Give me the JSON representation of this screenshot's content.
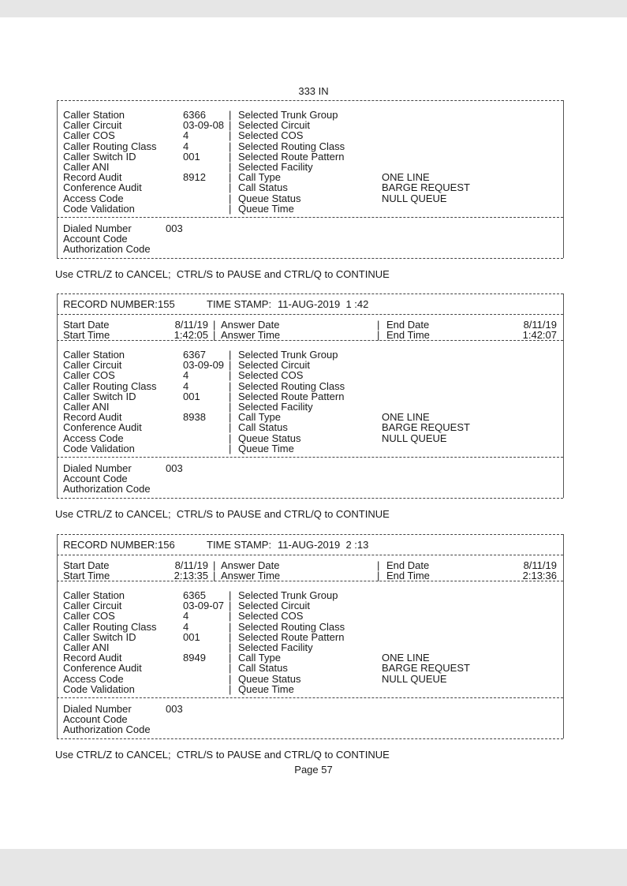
{
  "page_header": "333 IN",
  "page_footer": "Page 57",
  "records": [
    {
      "partial": true,
      "left": [
        {
          "label": "Caller Station",
          "value": "6366"
        },
        {
          "label": "Caller Circuit",
          "value": "03-09-08"
        },
        {
          "label": "Caller COS",
          "value": "4"
        },
        {
          "label": "Caller Routing Class",
          "value": "4"
        },
        {
          "label": "Caller Switch ID",
          "value": "001"
        },
        {
          "label": "Caller ANI",
          "value": ""
        },
        {
          "label": "Record Audit",
          "value": "8912"
        },
        {
          "label": "Conference Audit",
          "value": ""
        },
        {
          "label": "Access Code",
          "value": ""
        },
        {
          "label": "Code Validation",
          "value": ""
        }
      ],
      "right": [
        {
          "label": "Selected Trunk Group",
          "value": ""
        },
        {
          "label": "Selected Circuit",
          "value": ""
        },
        {
          "label": "Selected COS",
          "value": ""
        },
        {
          "label": "Selected Routing Class",
          "value": ""
        },
        {
          "label": "Selected Route Pattern",
          "value": ""
        },
        {
          "label": "Selected Facility",
          "value": ""
        },
        {
          "label": "Call Type",
          "value": "ONE LINE"
        },
        {
          "label": "Call Status",
          "value": "BARGE REQUEST"
        },
        {
          "label": "Queue Status",
          "value": "NULL QUEUE"
        },
        {
          "label": "Queue Time",
          "value": ""
        }
      ],
      "dialed": [
        {
          "label": "Dialed Number",
          "value": "003"
        },
        {
          "label": "Account Code",
          "value": ""
        },
        {
          "label": "Authorization Code",
          "value": ""
        }
      ],
      "footer": "Use CTRL/Z to CANCEL;  CTRL/S to PAUSE and CTRL/Q to CONTINUE"
    },
    {
      "record_number_label": "RECORD NUMBER:",
      "record_number": "155",
      "timestamp_label": "TIME STAMP:",
      "timestamp": "11-AUG-2019  1 :42",
      "start_date_label": "Start Date",
      "start_date": "8/11/19",
      "start_time_label": "Start Time",
      "start_time": "1:42:05",
      "answer_date_label": "Answer Date",
      "answer_time_label": "Answer Time",
      "end_date_label": "End Date",
      "end_date": "8/11/19",
      "end_time_label": "End Time",
      "end_time": "1:42:07",
      "left": [
        {
          "label": "Caller Station",
          "value": "6367"
        },
        {
          "label": "Caller Circuit",
          "value": "03-09-09"
        },
        {
          "label": "Caller COS",
          "value": "4"
        },
        {
          "label": "Caller Routing Class",
          "value": "4"
        },
        {
          "label": "Caller Switch ID",
          "value": "001"
        },
        {
          "label": "Caller ANI",
          "value": ""
        },
        {
          "label": "Record Audit",
          "value": "8938"
        },
        {
          "label": "Conference Audit",
          "value": ""
        },
        {
          "label": "Access Code",
          "value": ""
        },
        {
          "label": "Code Validation",
          "value": ""
        }
      ],
      "right": [
        {
          "label": "Selected Trunk Group",
          "value": ""
        },
        {
          "label": "Selected Circuit",
          "value": ""
        },
        {
          "label": "Selected COS",
          "value": ""
        },
        {
          "label": "Selected Routing Class",
          "value": ""
        },
        {
          "label": "Selected Route Pattern",
          "value": ""
        },
        {
          "label": "Selected Facility",
          "value": ""
        },
        {
          "label": "Call Type",
          "value": "ONE LINE"
        },
        {
          "label": "Call Status",
          "value": "BARGE REQUEST"
        },
        {
          "label": "Queue Status",
          "value": "NULL QUEUE"
        },
        {
          "label": "Queue Time",
          "value": ""
        }
      ],
      "dialed": [
        {
          "label": "Dialed Number",
          "value": "003"
        },
        {
          "label": "Account Code",
          "value": ""
        },
        {
          "label": "Authorization Code",
          "value": ""
        }
      ],
      "footer": "Use CTRL/Z to CANCEL;  CTRL/S to PAUSE and CTRL/Q to CONTINUE"
    },
    {
      "record_number_label": "RECORD NUMBER:",
      "record_number": "156",
      "timestamp_label": "TIME STAMP:",
      "timestamp": "11-AUG-2019  2 :13",
      "start_date_label": "Start Date",
      "start_date": "8/11/19",
      "start_time_label": "Start Time",
      "start_time": "2:13:35",
      "answer_date_label": "Answer Date",
      "answer_time_label": "Answer Time",
      "end_date_label": "End Date",
      "end_date": "8/11/19",
      "end_time_label": "End Time",
      "end_time": "2:13:36",
      "left": [
        {
          "label": "Caller Station",
          "value": "6365"
        },
        {
          "label": "Caller Circuit",
          "value": "03-09-07"
        },
        {
          "label": "Caller COS",
          "value": "4"
        },
        {
          "label": "Caller Routing Class",
          "value": "4"
        },
        {
          "label": "Caller Switch ID",
          "value": "001"
        },
        {
          "label": "Caller ANI",
          "value": ""
        },
        {
          "label": "Record Audit",
          "value": "8949"
        },
        {
          "label": "Conference Audit",
          "value": ""
        },
        {
          "label": "Access Code",
          "value": ""
        },
        {
          "label": "Code Validation",
          "value": ""
        }
      ],
      "right": [
        {
          "label": "Selected Trunk Group",
          "value": ""
        },
        {
          "label": "Selected Circuit",
          "value": ""
        },
        {
          "label": "Selected COS",
          "value": ""
        },
        {
          "label": "Selected Routing Class",
          "value": ""
        },
        {
          "label": "Selected Route Pattern",
          "value": ""
        },
        {
          "label": "Selected Facility",
          "value": ""
        },
        {
          "label": "Call Type",
          "value": "ONE LINE"
        },
        {
          "label": "Call Status",
          "value": "BARGE REQUEST"
        },
        {
          "label": "Queue Status",
          "value": "NULL QUEUE"
        },
        {
          "label": "Queue Time",
          "value": ""
        }
      ],
      "dialed": [
        {
          "label": "Dialed Number",
          "value": "003"
        },
        {
          "label": "Account Code",
          "value": ""
        },
        {
          "label": "Authorization Code",
          "value": ""
        }
      ],
      "footer": "Use CTRL/Z to CANCEL;  CTRL/S to PAUSE and CTRL/Q to CONTINUE"
    }
  ]
}
